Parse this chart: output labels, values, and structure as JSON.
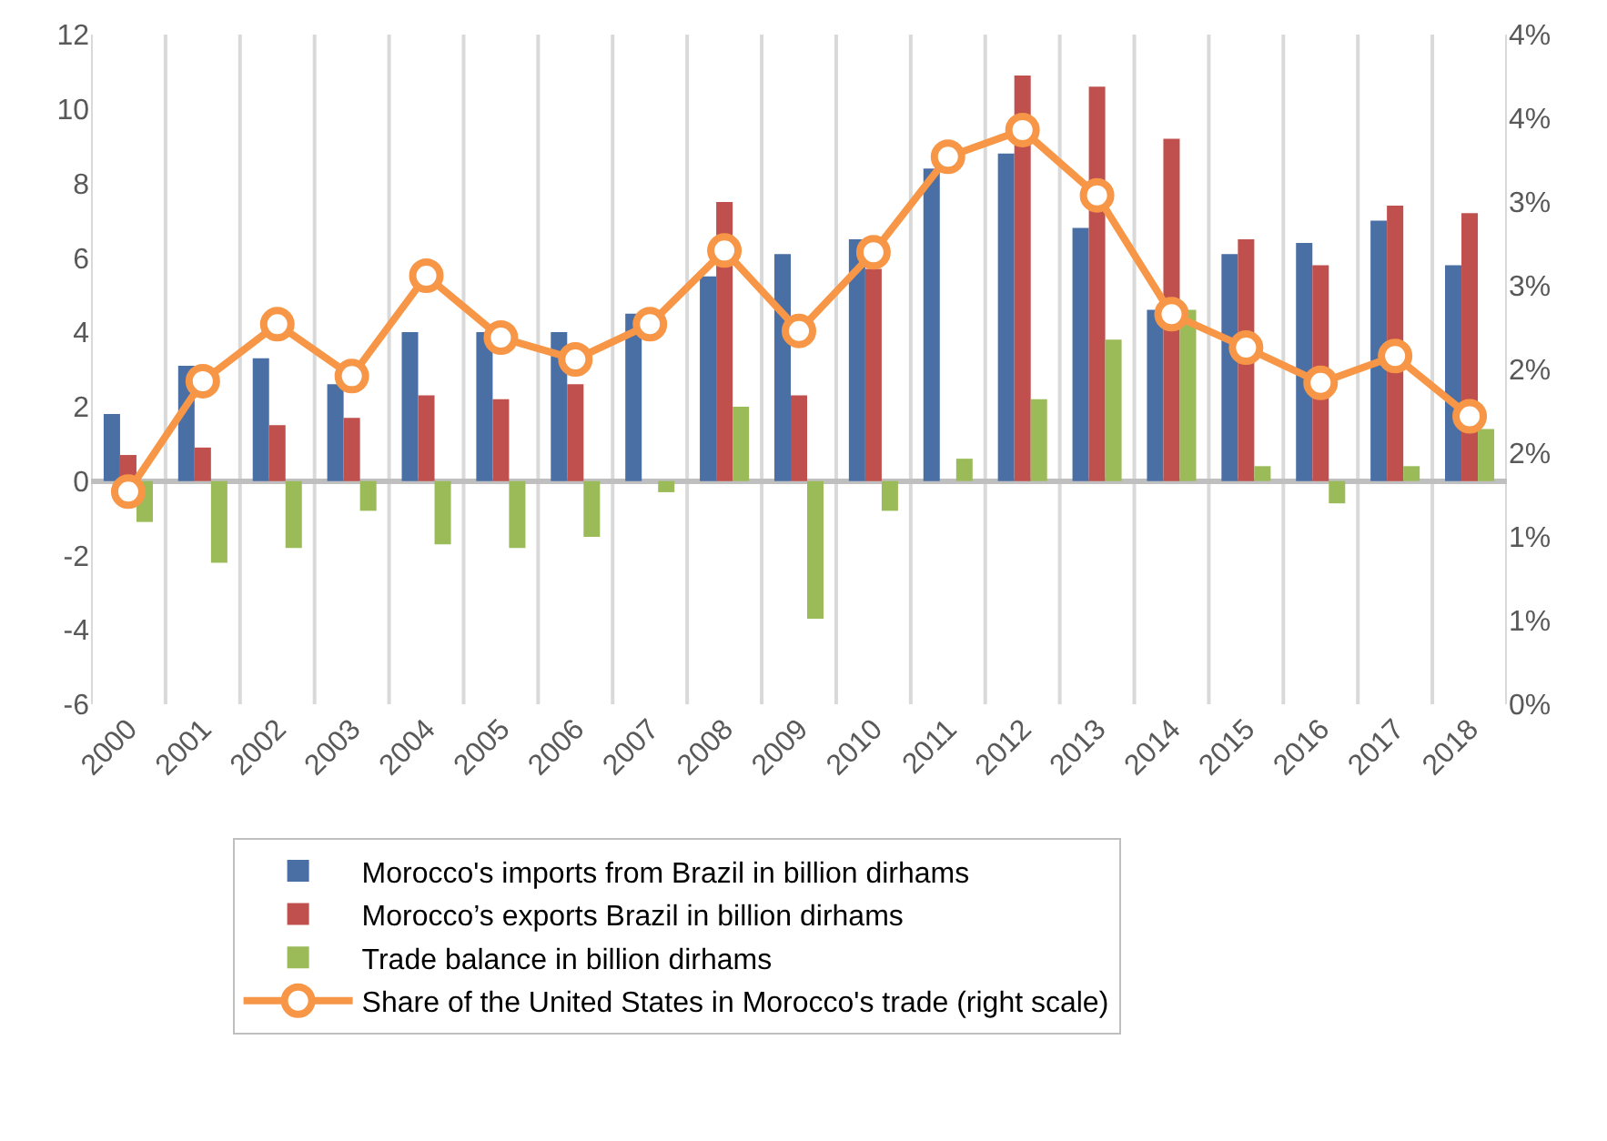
{
  "chart_data": {
    "type": "bar",
    "categories": [
      "2000",
      "2001",
      "2002",
      "2003",
      "2004",
      "2005",
      "2006",
      "2007",
      "2008",
      "2009",
      "2010",
      "2011",
      "2012",
      "2013",
      "2014",
      "2015",
      "2016",
      "2017",
      "2018"
    ],
    "series": [
      {
        "name": "Morocco's imports from Brazil in billion dirhams",
        "color": "#4a6fa5",
        "values": [
          1.8,
          3.1,
          3.3,
          2.6,
          4.0,
          4.0,
          4.0,
          4.5,
          5.5,
          6.1,
          6.5,
          8.4,
          8.8,
          6.8,
          4.6,
          6.1,
          6.4,
          7.0,
          5.8
        ]
      },
      {
        "name": "Morocco’s exports Brazil in billion dirhams",
        "color": "#c0504d",
        "values": [
          0.7,
          0.9,
          1.5,
          1.7,
          2.3,
          2.2,
          2.6,
          null,
          7.5,
          2.3,
          5.7,
          null,
          10.9,
          10.6,
          9.2,
          6.5,
          5.8,
          7.4,
          7.2
        ]
      },
      {
        "name": "Trade balance in billion dirhams",
        "color": "#9bbb59",
        "values": [
          -1.1,
          -2.2,
          -1.8,
          -0.8,
          -1.7,
          -1.8,
          -1.5,
          -0.3,
          2.0,
          -3.7,
          -0.8,
          0.6,
          2.2,
          3.8,
          4.6,
          0.4,
          -0.6,
          0.4,
          1.4
        ]
      },
      {
        "name": "Share of the United States in Morocco's trade (right scale)",
        "color": "#f79646",
        "type": "line",
        "axis": "y2",
        "marker": "circle",
        "values": [
          1.27,
          1.93,
          2.27,
          1.96,
          2.56,
          2.19,
          2.06,
          2.27,
          2.71,
          2.23,
          2.7,
          3.27,
          3.43,
          3.04,
          2.33,
          2.13,
          1.92,
          2.08,
          1.72
        ]
      }
    ],
    "ylim": [
      -6,
      12
    ],
    "yticks": [
      -6,
      -4,
      -2,
      0,
      2,
      4,
      6,
      8,
      10,
      12
    ],
    "y2lim": [
      0,
      4
    ],
    "y2ticks": [
      {
        "value": 0,
        "label": "0%"
      },
      {
        "value": 0.5,
        "label": "1%"
      },
      {
        "value": 1,
        "label": "1%"
      },
      {
        "value": 1.5,
        "label": "2%"
      },
      {
        "value": 2,
        "label": "2%"
      },
      {
        "value": 2.5,
        "label": "3%"
      },
      {
        "value": 3,
        "label": "3%"
      },
      {
        "value": 3.5,
        "label": "4%"
      },
      {
        "value": 4,
        "label": "4%"
      }
    ],
    "grid": "x",
    "legend": "bottom"
  }
}
